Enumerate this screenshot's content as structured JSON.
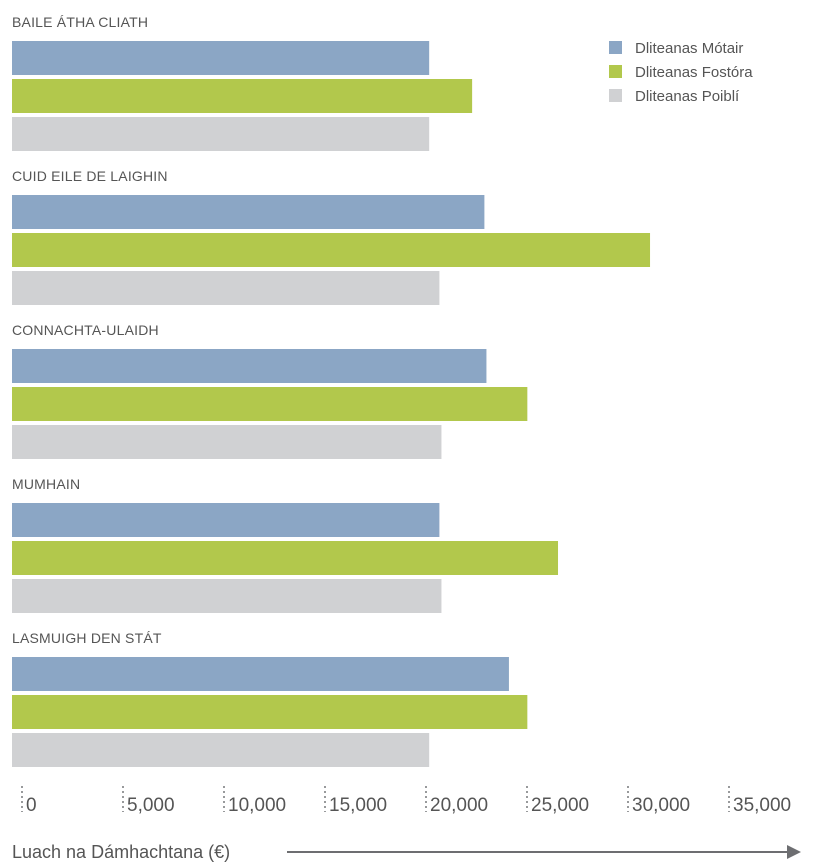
{
  "chart_data": {
    "type": "bar",
    "orientation": "horizontal",
    "categories": [
      "BAILE ÁTHA CLIATH",
      "CUID EILE DE LAIGHIN",
      "CONNACHTA-ULAIDH",
      "MUMHAIN",
      "LASMUIGH DEN STÁT"
    ],
    "series": [
      {
        "name": "Dliteanas Mótair",
        "color": "#8ba6c5",
        "values": [
          20400,
          23100,
          23200,
          20900,
          24300
        ]
      },
      {
        "name": "Dliteanas Fostóra",
        "color": "#b2c84c",
        "values": [
          22500,
          31200,
          25200,
          26700,
          25200
        ]
      },
      {
        "name": "Dliteanas Poiblí",
        "color": "#d0d1d3",
        "values": [
          20400,
          20900,
          21000,
          21000,
          20400
        ]
      }
    ],
    "x_ticks": [
      "0",
      "5,000",
      "10,000",
      "15,000",
      "20,000",
      "25,000",
      "30,000",
      "35,000"
    ],
    "xlim": [
      0,
      40000
    ],
    "xlabel": "Luach na Dámhachtana (€)",
    "ylabel": "",
    "title": "",
    "legend_position": "top-right",
    "grid": false
  }
}
